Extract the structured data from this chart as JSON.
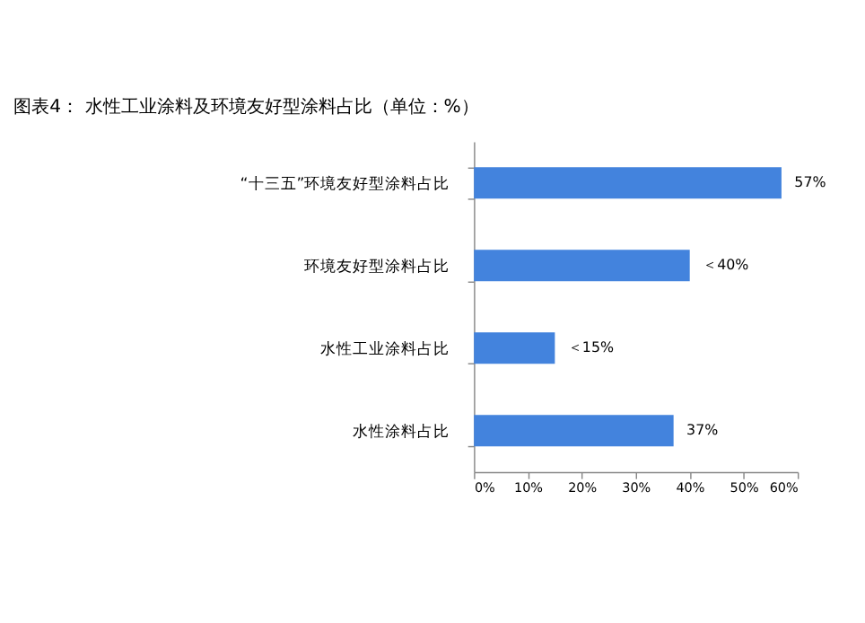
{
  "chart_data": {
    "type": "bar",
    "orientation": "horizontal",
    "title": "图表4： 水性工业涂料及环境友好型涂料占比（单位：%）",
    "categories": [
      "“十三五”环境友好型涂料占比",
      "环境友好型涂料占比",
      "水性工业涂料占比",
      "水性涂料占比"
    ],
    "values": [
      57,
      40,
      15,
      37
    ],
    "value_labels": [
      "57%",
      "＜40%",
      "＜15%",
      "37%"
    ],
    "color": "#4383dd",
    "xlim": [
      0,
      60
    ],
    "xticks": [
      {
        "value": 0,
        "label": "0%"
      },
      {
        "value": 10,
        "label": "10%"
      },
      {
        "value": 20,
        "label": "20%"
      },
      {
        "value": 30,
        "label": "30%"
      },
      {
        "value": 40,
        "label": "40%"
      },
      {
        "value": 50,
        "label": "50%"
      },
      {
        "value": 60,
        "label": "60%"
      }
    ],
    "grid": false
  }
}
